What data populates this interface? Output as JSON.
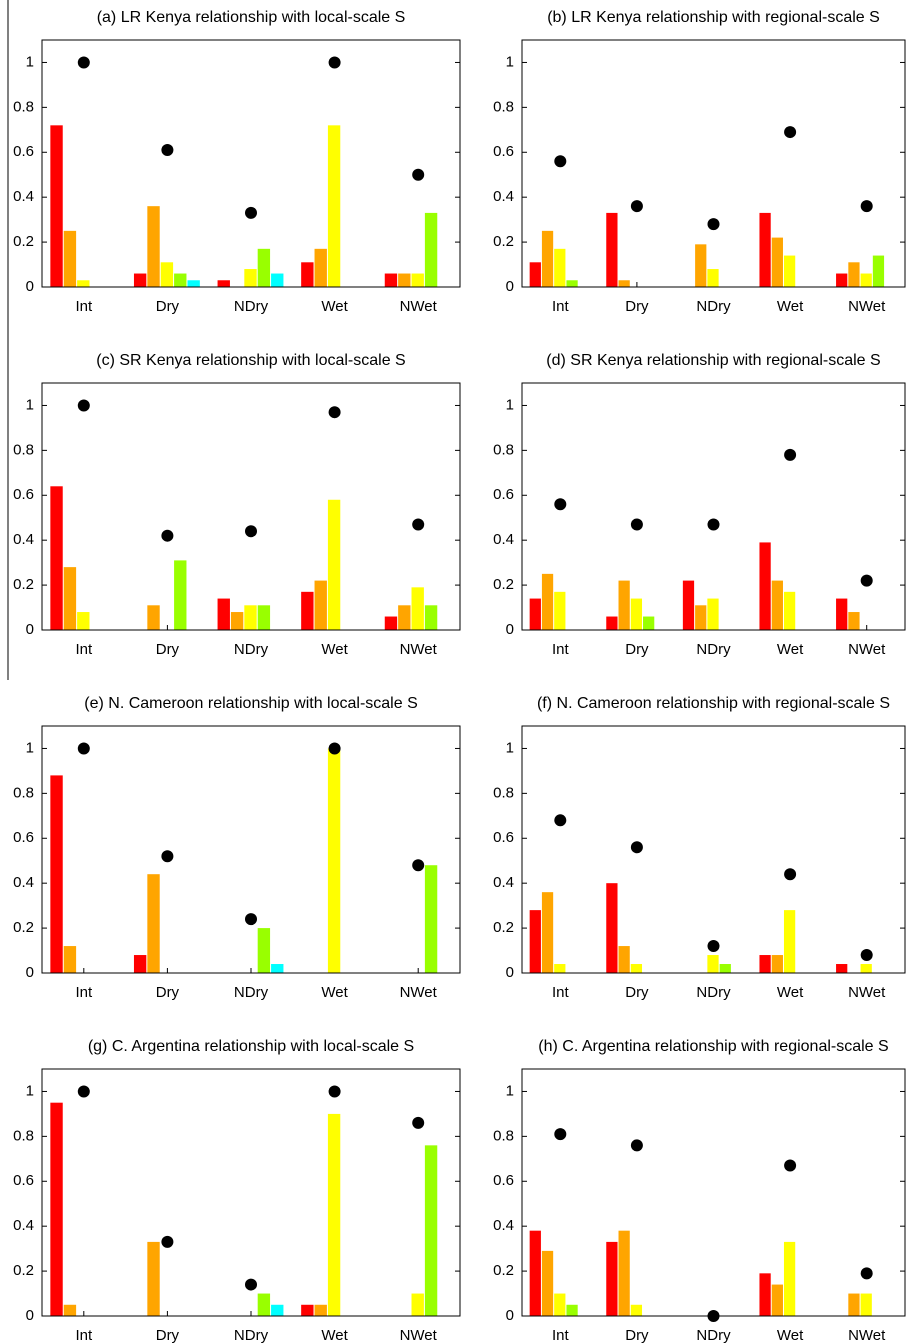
{
  "chart_data": [
    {
      "type": "bar",
      "title": "(a) LR Kenya relationship with local-scale S",
      "categories": [
        "Int",
        "Dry",
        "NDry",
        "Wet",
        "NWet"
      ],
      "series": [
        {
          "color": "#ff0000",
          "values": [
            0.72,
            0.06,
            0.03,
            0.11,
            0.06
          ]
        },
        {
          "color": "#ffa500",
          "values": [
            0.25,
            0.36,
            0,
            0.17,
            0.06
          ]
        },
        {
          "color": "#ffff00",
          "values": [
            0.03,
            0.11,
            0.08,
            0.72,
            0.06
          ]
        },
        {
          "color": "#99ff00",
          "values": [
            0,
            0.06,
            0.17,
            0,
            0.33
          ]
        },
        {
          "color": "#00ffff",
          "values": [
            0,
            0.03,
            0.06,
            0,
            0
          ]
        }
      ],
      "points": {
        "color": "#000000",
        "values": [
          1,
          0.61,
          0.33,
          1,
          0.5
        ]
      },
      "ylim": [
        0,
        1.1
      ],
      "yticks": [
        0,
        0.2,
        0.4,
        0.6,
        0.8,
        1
      ]
    },
    {
      "type": "bar",
      "title": "(b) LR Kenya relationship with regional-scale S",
      "categories": [
        "Int",
        "Dry",
        "NDry",
        "Wet",
        "NWet"
      ],
      "series": [
        {
          "color": "#ff0000",
          "values": [
            0.11,
            0.33,
            0,
            0.33,
            0.06
          ]
        },
        {
          "color": "#ffa500",
          "values": [
            0.25,
            0.03,
            0.19,
            0.22,
            0.11
          ]
        },
        {
          "color": "#ffff00",
          "values": [
            0.17,
            0,
            0.08,
            0.14,
            0.06
          ]
        },
        {
          "color": "#99ff00",
          "values": [
            0.03,
            0,
            0,
            0,
            0.14
          ]
        },
        {
          "color": "#00ffff",
          "values": [
            0,
            0,
            0,
            0,
            0
          ]
        }
      ],
      "points": {
        "color": "#000000",
        "values": [
          0.56,
          0.36,
          0.28,
          0.69,
          0.36
        ]
      },
      "ylim": [
        0,
        1.1
      ],
      "yticks": [
        0,
        0.2,
        0.4,
        0.6,
        0.8,
        1
      ]
    },
    {
      "type": "bar",
      "title": "(c) SR Kenya relationship with local-scale S",
      "categories": [
        "Int",
        "Dry",
        "NDry",
        "Wet",
        "NWet"
      ],
      "series": [
        {
          "color": "#ff0000",
          "values": [
            0.64,
            0,
            0.14,
            0.17,
            0.06
          ]
        },
        {
          "color": "#ffa500",
          "values": [
            0.28,
            0.11,
            0.08,
            0.22,
            0.11
          ]
        },
        {
          "color": "#ffff00",
          "values": [
            0.08,
            0,
            0.11,
            0.58,
            0.19
          ]
        },
        {
          "color": "#99ff00",
          "values": [
            0,
            0.31,
            0.11,
            0,
            0.11
          ]
        },
        {
          "color": "#00ffff",
          "values": [
            0,
            0,
            0,
            0,
            0
          ]
        }
      ],
      "points": {
        "color": "#000000",
        "values": [
          1,
          0.42,
          0.44,
          0.97,
          0.47
        ]
      },
      "ylim": [
        0,
        1.1
      ],
      "yticks": [
        0,
        0.2,
        0.4,
        0.6,
        0.8,
        1
      ]
    },
    {
      "type": "bar",
      "title": "(d) SR Kenya relationship with regional-scale S",
      "categories": [
        "Int",
        "Dry",
        "NDry",
        "Wet",
        "NWet"
      ],
      "series": [
        {
          "color": "#ff0000",
          "values": [
            0.14,
            0.06,
            0.22,
            0.39,
            0.14
          ]
        },
        {
          "color": "#ffa500",
          "values": [
            0.25,
            0.22,
            0.11,
            0.22,
            0.08
          ]
        },
        {
          "color": "#ffff00",
          "values": [
            0.17,
            0.14,
            0.14,
            0.17,
            0
          ]
        },
        {
          "color": "#99ff00",
          "values": [
            0,
            0.06,
            0,
            0,
            0
          ]
        },
        {
          "color": "#00ffff",
          "values": [
            0,
            0,
            0,
            0,
            0
          ]
        }
      ],
      "points": {
        "color": "#000000",
        "values": [
          0.56,
          0.47,
          0.47,
          0.78,
          0.22
        ]
      },
      "ylim": [
        0,
        1.1
      ],
      "yticks": [
        0,
        0.2,
        0.4,
        0.6,
        0.8,
        1
      ]
    },
    {
      "type": "bar",
      "title": "(e) N. Cameroon relationship with local-scale S",
      "categories": [
        "Int",
        "Dry",
        "NDry",
        "Wet",
        "NWet"
      ],
      "series": [
        {
          "color": "#ff0000",
          "values": [
            0.88,
            0.08,
            0,
            0,
            0
          ]
        },
        {
          "color": "#ffa500",
          "values": [
            0.12,
            0.44,
            0,
            0,
            0
          ]
        },
        {
          "color": "#ffff00",
          "values": [
            0,
            0,
            0,
            1,
            0
          ]
        },
        {
          "color": "#99ff00",
          "values": [
            0,
            0,
            0.2,
            0,
            0.48
          ]
        },
        {
          "color": "#00ffff",
          "values": [
            0,
            0,
            0.04,
            0,
            0
          ]
        }
      ],
      "points": {
        "color": "#000000",
        "values": [
          1,
          0.52,
          0.24,
          1,
          0.48
        ]
      },
      "ylim": [
        0,
        1.1
      ],
      "yticks": [
        0,
        0.2,
        0.4,
        0.6,
        0.8,
        1
      ]
    },
    {
      "type": "bar",
      "title": "(f) N. Cameroon relationship with regional-scale S",
      "categories": [
        "Int",
        "Dry",
        "NDry",
        "Wet",
        "NWet"
      ],
      "series": [
        {
          "color": "#ff0000",
          "values": [
            0.28,
            0.4,
            0,
            0.08,
            0.04
          ]
        },
        {
          "color": "#ffa500",
          "values": [
            0.36,
            0.12,
            0,
            0.08,
            0
          ]
        },
        {
          "color": "#ffff00",
          "values": [
            0.04,
            0.04,
            0.08,
            0.28,
            0.04
          ]
        },
        {
          "color": "#99ff00",
          "values": [
            0,
            0,
            0.04,
            0,
            0
          ]
        },
        {
          "color": "#00ffff",
          "values": [
            0,
            0,
            0,
            0,
            0
          ]
        }
      ],
      "points": {
        "color": "#000000",
        "values": [
          0.68,
          0.56,
          0.12,
          0.44,
          0.08
        ]
      },
      "ylim": [
        0,
        1.1
      ],
      "yticks": [
        0,
        0.2,
        0.4,
        0.6,
        0.8,
        1
      ]
    },
    {
      "type": "bar",
      "title": "(g) C. Argentina relationship with local-scale S",
      "categories": [
        "Int",
        "Dry",
        "NDry",
        "Wet",
        "NWet"
      ],
      "series": [
        {
          "color": "#ff0000",
          "values": [
            0.95,
            0,
            0,
            0.05,
            0
          ]
        },
        {
          "color": "#ffa500",
          "values": [
            0.05,
            0.33,
            0,
            0.05,
            0
          ]
        },
        {
          "color": "#ffff00",
          "values": [
            0,
            0,
            0,
            0.9,
            0.1
          ]
        },
        {
          "color": "#99ff00",
          "values": [
            0,
            0,
            0.1,
            0,
            0.76
          ]
        },
        {
          "color": "#00ffff",
          "values": [
            0,
            0,
            0.05,
            0,
            0
          ]
        }
      ],
      "points": {
        "color": "#000000",
        "values": [
          1,
          0.33,
          0.14,
          1,
          0.86
        ]
      },
      "ylim": [
        0,
        1.1
      ],
      "yticks": [
        0,
        0.2,
        0.4,
        0.6,
        0.8,
        1
      ]
    },
    {
      "type": "bar",
      "title": "(h) C. Argentina relationship with regional-scale S",
      "categories": [
        "Int",
        "Dry",
        "NDry",
        "Wet",
        "NWet"
      ],
      "series": [
        {
          "color": "#ff0000",
          "values": [
            0.38,
            0.33,
            0,
            0.19,
            0
          ]
        },
        {
          "color": "#ffa500",
          "values": [
            0.29,
            0.38,
            0,
            0.14,
            0.1
          ]
        },
        {
          "color": "#ffff00",
          "values": [
            0.1,
            0.05,
            0,
            0.33,
            0.1
          ]
        },
        {
          "color": "#99ff00",
          "values": [
            0.05,
            0,
            0,
            0,
            0
          ]
        },
        {
          "color": "#00ffff",
          "values": [
            0,
            0,
            0,
            0,
            0
          ]
        }
      ],
      "points": {
        "color": "#000000",
        "values": [
          0.81,
          0.76,
          0,
          0.67,
          0.19
        ]
      },
      "ylim": [
        0,
        1.1
      ],
      "yticks": [
        0,
        0.2,
        0.4,
        0.6,
        0.8,
        1
      ]
    }
  ]
}
